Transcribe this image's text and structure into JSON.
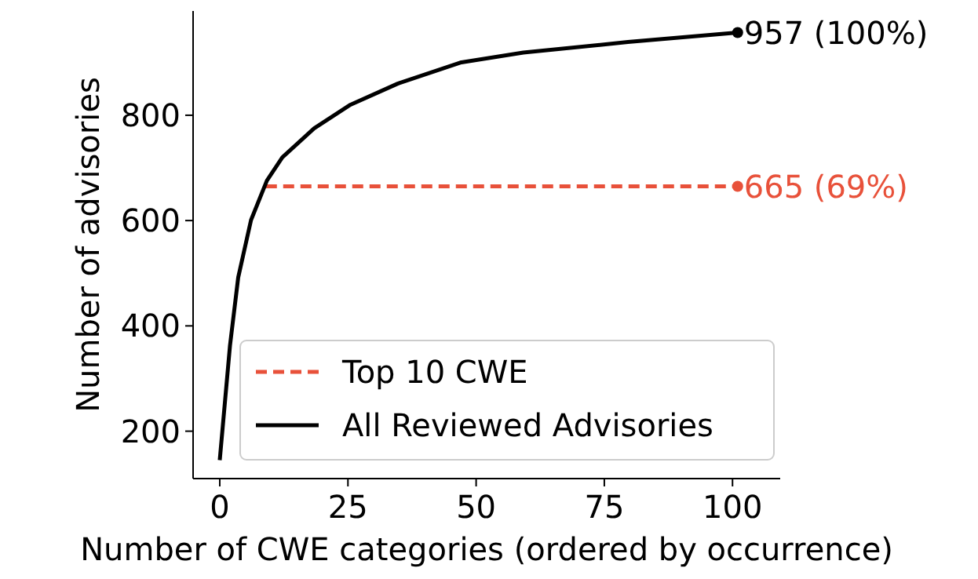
{
  "chart_data": {
    "type": "line",
    "xlabel": "Number of CWE categories (ordered by occurrence)",
    "ylabel": "Number of advisories",
    "xlim": [
      -5.2,
      109.3
    ],
    "ylim": [
      110,
      998
    ],
    "xticks": [
      0,
      25,
      50,
      75,
      100
    ],
    "yticks": [
      200,
      400,
      600,
      800
    ],
    "legend": "bottom left",
    "grid": false,
    "series": [
      {
        "name": "Top 10 CWE",
        "color": "#e8513a",
        "line_style": "dashed",
        "x": [
          9,
          101
        ],
        "values": [
          665,
          665
        ]
      },
      {
        "name": "All Reviewed Advisories",
        "color": "#000000",
        "line_style": "solid",
        "x": [
          0,
          2,
          3.6,
          6.1,
          9.2,
          12.2,
          18.4,
          25.5,
          34.7,
          46.9,
          59.2,
          79.6,
          101
        ],
        "values": [
          145,
          363,
          492,
          601,
          676,
          720,
          775,
          820,
          860,
          900,
          919,
          939,
          957
        ]
      }
    ],
    "annotations": [
      {
        "text": "957 (100%)",
        "x": 101,
        "y": 957
      },
      {
        "text": "665 (69%)",
        "x": 101,
        "y": 665
      }
    ]
  }
}
